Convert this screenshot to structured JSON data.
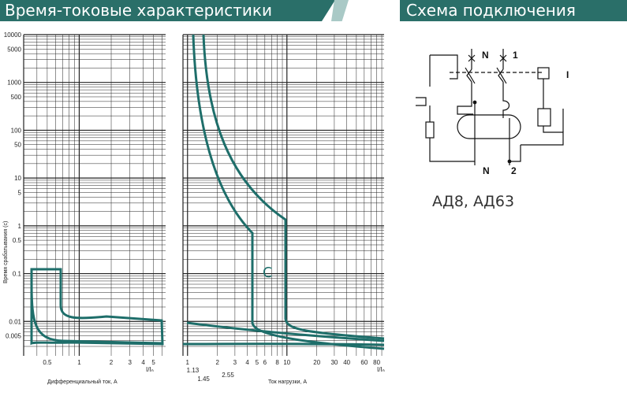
{
  "header": {
    "left_title": "Время-токовые характеристики",
    "right_title": "Схема подключения"
  },
  "chart_left": {
    "y_ticks": [
      "10000",
      "5000",
      "1000",
      "500",
      "100",
      "50",
      "10",
      "5",
      "1",
      "0.5",
      "0.1",
      "0.01",
      "0.005"
    ],
    "x_ticks": [
      "0.5",
      "1",
      "2",
      "3",
      "4",
      "5"
    ],
    "x_ratio_label": "I/Iₙ",
    "x_label": "Дифференциальный ток, А",
    "y_label": "Время срабатывания (с)"
  },
  "chart_right": {
    "x_ticks": [
      "1",
      "2",
      "3",
      "4",
      "5",
      "6",
      "8",
      "10",
      "20",
      "30",
      "40",
      "60",
      "80"
    ],
    "x_extra_ticks": [
      "1.13",
      "1.45",
      "2.55"
    ],
    "x_ratio_label": "I/Iₙ",
    "x_label": "Ток нагрузки, А",
    "curve_label": "C"
  },
  "schema": {
    "terminals": [
      "N",
      "1",
      "N",
      "2"
    ],
    "test_label": "I",
    "model": "АД8, АД63"
  },
  "colors": {
    "accent": "#2a6f69",
    "curve": "#1e6e6a",
    "grid": "#222222"
  }
}
